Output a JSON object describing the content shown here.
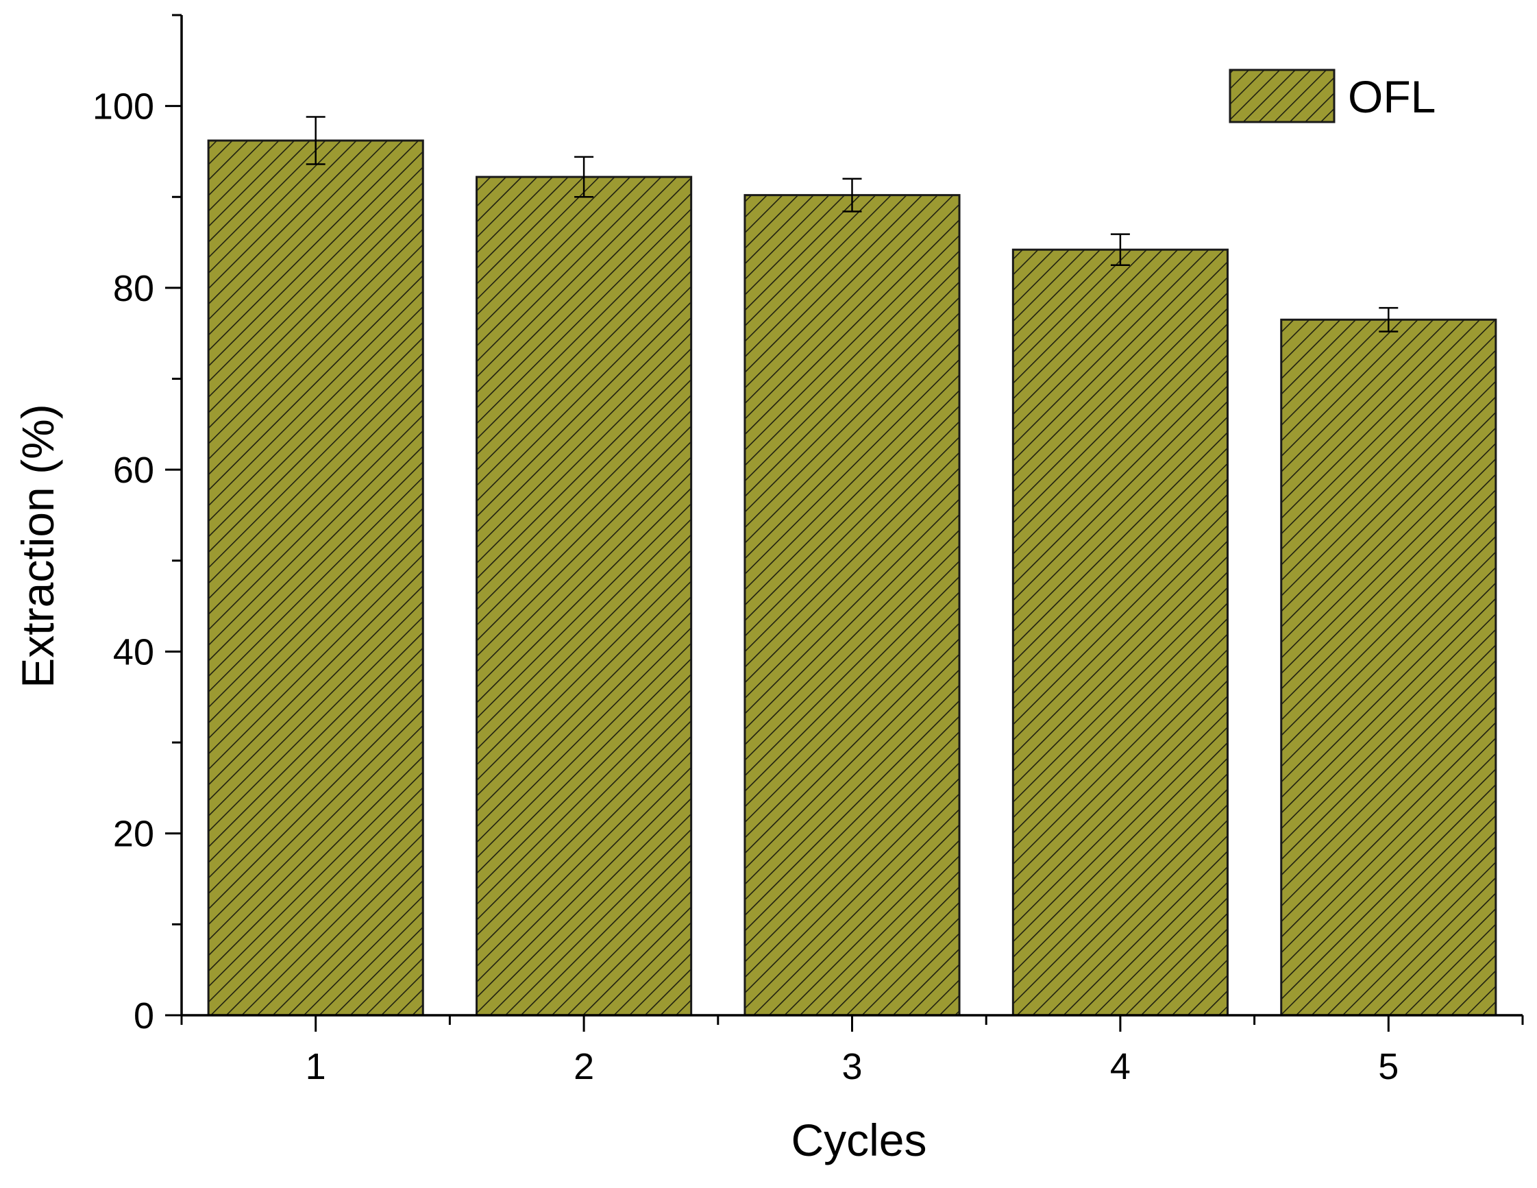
{
  "chart_data": {
    "type": "bar",
    "categories": [
      "1",
      "2",
      "3",
      "4",
      "5"
    ],
    "series": [
      {
        "name": "OFL",
        "values": [
          96.2,
          92.2,
          90.2,
          84.2,
          76.5
        ],
        "errors": [
          2.6,
          2.2,
          1.8,
          1.7,
          1.3
        ]
      }
    ],
    "xlabel": "Cycles",
    "ylabel": "Extraction (%)",
    "ylim": [
      0,
      110
    ],
    "yticks": [
      0,
      20,
      40,
      60,
      80,
      100
    ],
    "y_minor_step": 10,
    "grid": false,
    "legend_position": "top-right",
    "bar_fill": "#9c9a32",
    "hatch_color": "#1f2010",
    "edge_color": "#1a1a1a"
  }
}
